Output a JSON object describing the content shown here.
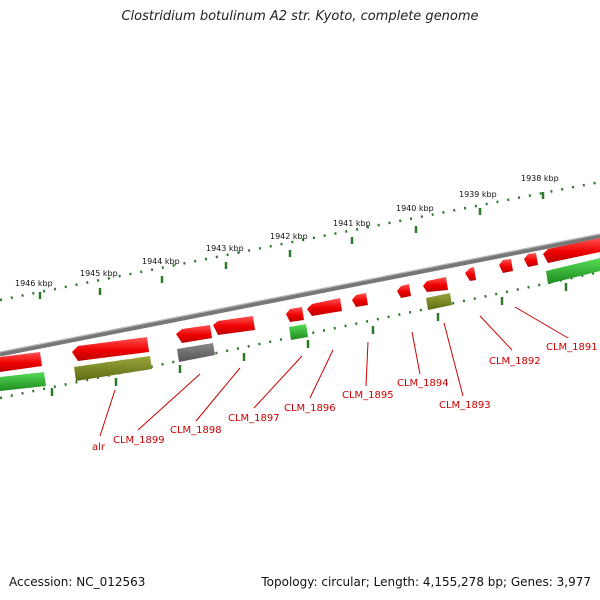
{
  "title": "Clostridium botulinum A2 str. Kyoto, complete genome",
  "footer": {
    "accession": "Accession: NC_012563",
    "summary": "Topology: circular; Length: 4,155,278 bp; Genes: 3,977"
  },
  "ruler": [
    "1946 kbp",
    "1945 kbp",
    "1944 kbp",
    "1943 kbp",
    "1942 kbp",
    "1941 kbp",
    "1940 kbp",
    "1939 kbp",
    "1938 kbp"
  ],
  "genes": [
    "alr",
    "CLM_1899",
    "CLM_1898",
    "CLM_1897",
    "CLM_1896",
    "CLM_1895",
    "CLM_1894",
    "CLM_1893",
    "CLM_1892",
    "CLM_1891"
  ],
  "colors": {
    "forward": "#ee1111",
    "reverse": "#22aa22",
    "rna": "#7a8a22",
    "pseudo": "#666666",
    "backbone": "#888888",
    "ticks": "#2a7a2a",
    "label": "#cc0000"
  }
}
